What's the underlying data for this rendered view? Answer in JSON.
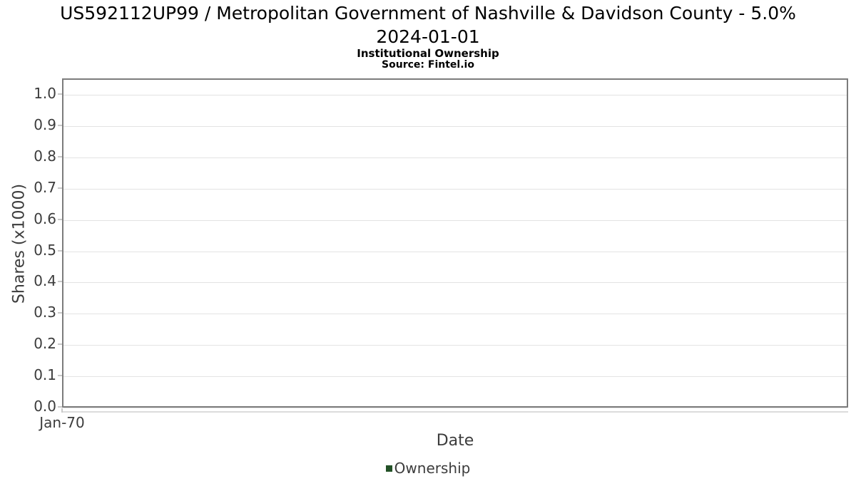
{
  "header": {
    "title_line1": "US592112UP99 / Metropolitan Government of Nashville & Davidson County - 5.0%",
    "title_line2": "2024-01-01",
    "subtitle": "Institutional Ownership",
    "source": "Source: Fintel.io"
  },
  "chart_data": {
    "type": "line",
    "title": "US592112UP99 / Metropolitan Government of Nashville & Davidson County - 5.0% 2024-01-01",
    "subtitle": "Institutional Ownership",
    "source": "Source: Fintel.io",
    "xlabel": "Date",
    "ylabel": "Shares (x1000)",
    "x_ticks": [
      "Jan-70"
    ],
    "y_tick_labels": [
      "0.0",
      "0.1",
      "0.2",
      "0.3",
      "0.4",
      "0.5",
      "0.6",
      "0.7",
      "0.8",
      "0.9",
      "1.0"
    ],
    "ylim": [
      0.0,
      1.05
    ],
    "grid": "horizontal",
    "legend_position": "bottom",
    "series": [
      {
        "name": "Ownership",
        "color": "#235127",
        "x": [],
        "values": []
      }
    ]
  },
  "colors": {
    "plot_border": "#7c7c7c",
    "gridline": "#e3e3e3",
    "tick": "#c9c9c9",
    "axis_text": "#3c3c3c",
    "title_text": "#000000",
    "legend_ownership": "#235127"
  }
}
